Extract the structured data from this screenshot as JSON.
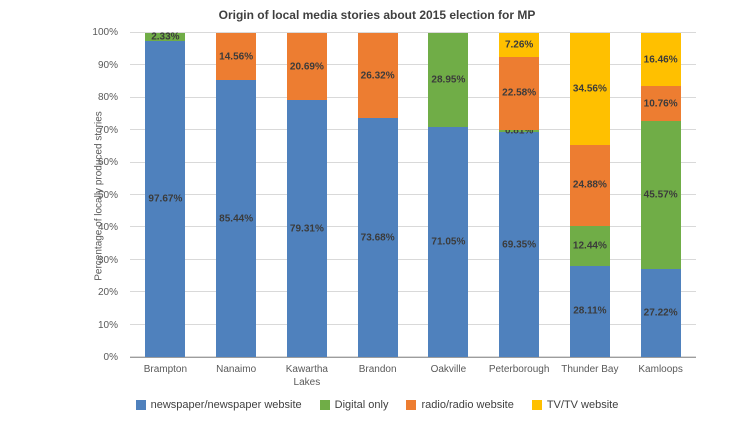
{
  "chart_data": {
    "type": "bar",
    "stacked": true,
    "title": "Origin of local media stories about 2015 election for MP",
    "ylabel": "Percentage of locally produced stories",
    "xlabel": "",
    "ylim": [
      0,
      100
    ],
    "ytick_labels": [
      "0%",
      "10%",
      "20%",
      "30%",
      "40%",
      "50%",
      "60%",
      "70%",
      "80%",
      "90%",
      "100%"
    ],
    "grid": true,
    "legend_position": "bottom",
    "label_format": "percent",
    "categories": [
      "Brampton",
      "Nanaimo",
      "Kawartha Lakes",
      "Brandon",
      "Oakville",
      "Peterborough",
      "Thunder Bay",
      "Kamloops"
    ],
    "series": [
      {
        "name": "newspaper/newspaper website",
        "color": "#4f81bd",
        "values": [
          97.67,
          85.44,
          79.31,
          73.68,
          71.05,
          69.35,
          28.11,
          27.22
        ]
      },
      {
        "name": "Digital only",
        "color": "#70ad47",
        "values": [
          2.33,
          0,
          0,
          0,
          28.95,
          0.81,
          12.44,
          45.57
        ]
      },
      {
        "name": "radio/radio website",
        "color": "#ed7d31",
        "values": [
          0,
          14.56,
          20.69,
          26.32,
          0,
          22.58,
          24.88,
          10.76
        ]
      },
      {
        "name": "TV/TV website",
        "color": "#ffc000",
        "values": [
          0,
          0,
          0,
          0,
          0,
          7.26,
          34.56,
          16.46
        ]
      }
    ]
  }
}
